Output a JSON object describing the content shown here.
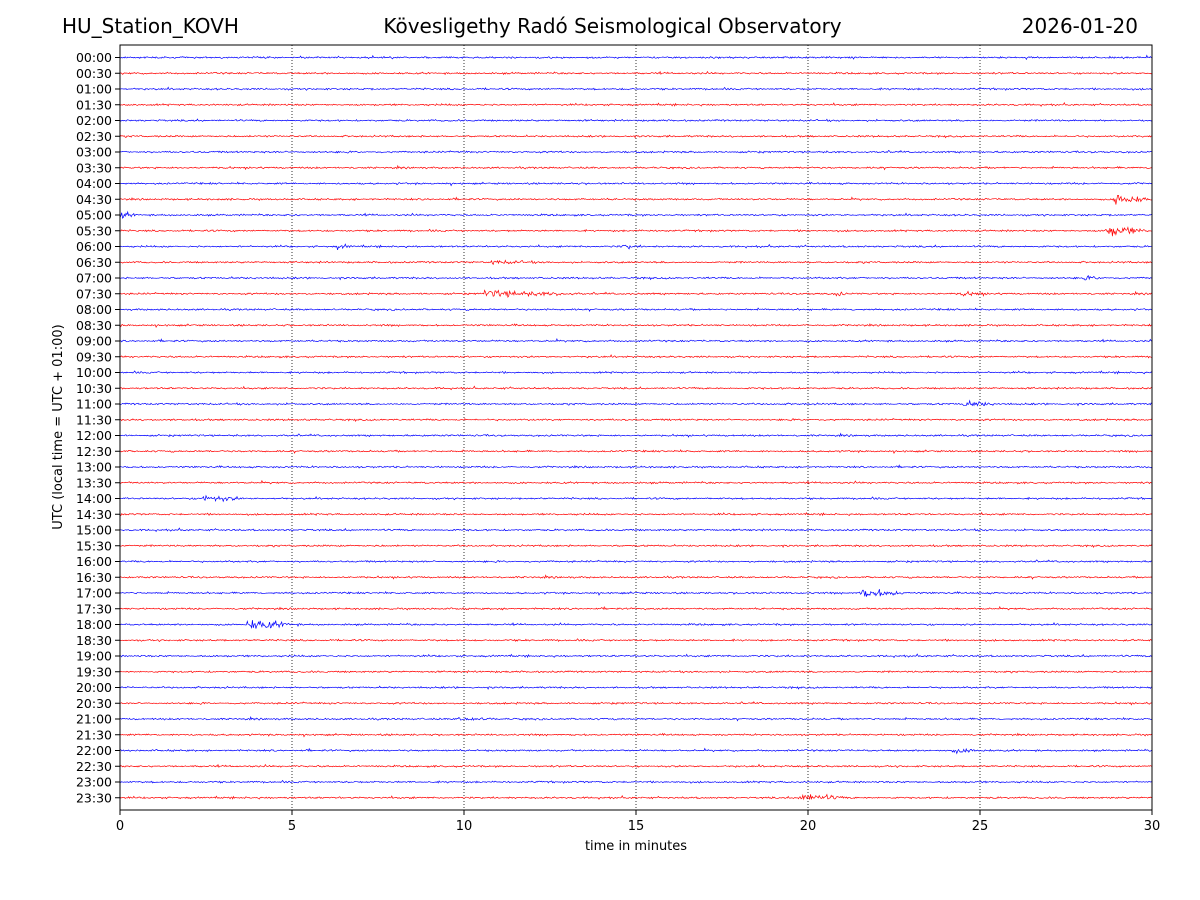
{
  "header": {
    "station": "HU_Station_KOVH",
    "title": "Kövesligethy Radó Seismological Observatory",
    "date": "2026-01-20"
  },
  "chart_data": {
    "type": "line",
    "title": "Kövesligethy Radó Seismological Observatory",
    "xlabel": "time in minutes",
    "ylabel": "UTC (local time = UTC + 01:00)",
    "xlim": [
      0,
      30
    ],
    "xticks": [
      0,
      5,
      10,
      15,
      20,
      25,
      30
    ],
    "grid": "vertical dotted at x ticks",
    "colors": {
      "even": "#0000ff",
      "odd": "#ff0000",
      "grid": "#000000"
    },
    "row_labels": [
      "00:00",
      "00:30",
      "01:00",
      "01:30",
      "02:00",
      "02:30",
      "03:00",
      "03:30",
      "04:00",
      "04:30",
      "05:00",
      "05:30",
      "06:00",
      "06:30",
      "07:00",
      "07:30",
      "08:00",
      "08:30",
      "09:00",
      "09:30",
      "10:00",
      "10:30",
      "11:00",
      "11:30",
      "12:00",
      "12:30",
      "13:00",
      "13:30",
      "14:00",
      "14:30",
      "15:00",
      "15:30",
      "16:00",
      "16:30",
      "17:00",
      "17:30",
      "18:00",
      "18:30",
      "19:00",
      "19:30",
      "20:00",
      "20:30",
      "21:00",
      "21:30",
      "22:00",
      "22:30",
      "23:00",
      "23:30"
    ],
    "events": [
      {
        "row": "04:30",
        "start_min": 28.9,
        "dur_min": 1.1,
        "amp": 1.6
      },
      {
        "row": "05:00",
        "start_min": 0.0,
        "dur_min": 0.5,
        "amp": 0.8
      },
      {
        "row": "05:30",
        "start_min": 28.6,
        "dur_min": 1.4,
        "amp": 1.5
      },
      {
        "row": "06:00",
        "start_min": 6.3,
        "dur_min": 0.5,
        "amp": 0.6
      },
      {
        "row": "06:00",
        "start_min": 14.6,
        "dur_min": 0.6,
        "amp": 0.6
      },
      {
        "row": "06:30",
        "start_min": 10.8,
        "dur_min": 1.5,
        "amp": 0.4
      },
      {
        "row": "07:00",
        "start_min": 28.0,
        "dur_min": 0.8,
        "amp": 0.4
      },
      {
        "row": "07:30",
        "start_min": 10.6,
        "dur_min": 3.0,
        "amp": 0.8
      },
      {
        "row": "07:30",
        "start_min": 20.8,
        "dur_min": 0.3,
        "amp": 1.0
      },
      {
        "row": "07:30",
        "start_min": 24.4,
        "dur_min": 1.0,
        "amp": 0.5
      },
      {
        "row": "11:00",
        "start_min": 24.5,
        "dur_min": 1.0,
        "amp": 0.9
      },
      {
        "row": "14:00",
        "start_min": 2.4,
        "dur_min": 1.3,
        "amp": 0.9
      },
      {
        "row": "17:00",
        "start_min": 21.5,
        "dur_min": 1.5,
        "amp": 1.3
      },
      {
        "row": "18:00",
        "start_min": 3.7,
        "dur_min": 1.6,
        "amp": 1.3
      },
      {
        "row": "21:00",
        "start_min": 9.8,
        "dur_min": 1.2,
        "amp": 0.4
      },
      {
        "row": "22:00",
        "start_min": 24.2,
        "dur_min": 1.2,
        "amp": 0.5
      },
      {
        "row": "23:30",
        "start_min": 19.7,
        "dur_min": 1.5,
        "amp": 1.1
      }
    ]
  }
}
